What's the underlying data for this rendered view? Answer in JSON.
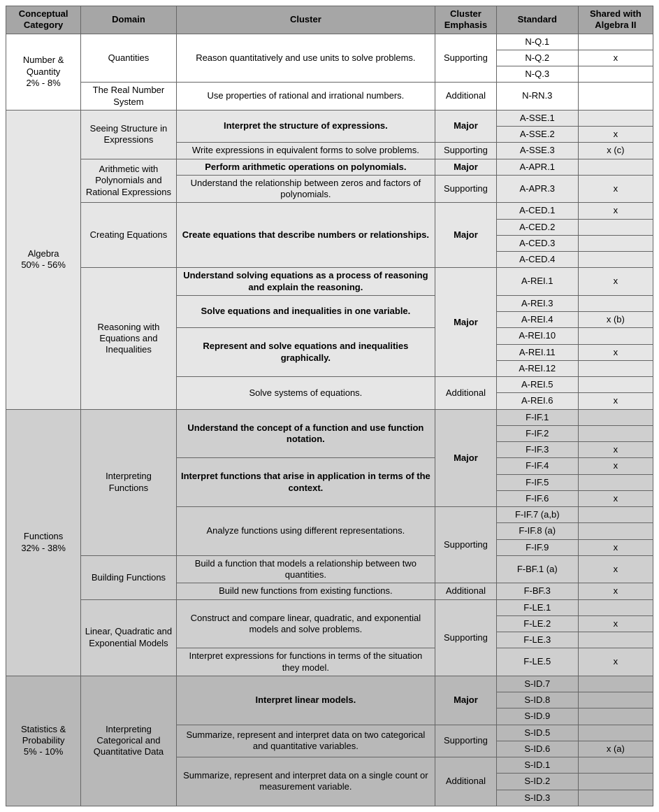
{
  "headers": {
    "category": "Conceptual Category",
    "domain": "Domain",
    "cluster": "Cluster",
    "emphasis": "Cluster Emphasis",
    "standard": "Standard",
    "shared": "Shared with Algebra II"
  },
  "styling": {
    "header_bg": "#a6a6a6",
    "section_bgs": [
      "#ffffff",
      "#e6e6e6",
      "#cfcfcf",
      "#b8b8b8"
    ],
    "border_color": "#666666",
    "font_family": "Arial",
    "font_size_pt": 10,
    "major_emphasis_bold": true
  },
  "sections": [
    {
      "category": "Number & Quantity\n2% - 8%",
      "bg": "#ffffff",
      "domains": [
        {
          "name": "Quantities",
          "clusters": [
            {
              "text": "Reason quantitatively and use units to solve problems.",
              "bold": false,
              "emphasis": "Supporting",
              "emphasis_bold": false,
              "standards": [
                {
                  "std": "N-Q.1",
                  "shared": ""
                },
                {
                  "std": "N-Q.2",
                  "shared": "x"
                },
                {
                  "std": "N-Q.3",
                  "shared": ""
                }
              ]
            }
          ]
        },
        {
          "name": "The Real Number System",
          "clusters": [
            {
              "text": "Use properties of rational and irrational numbers.",
              "bold": false,
              "emphasis": "Additional",
              "emphasis_bold": false,
              "standards": [
                {
                  "std": "N-RN.3",
                  "shared": ""
                }
              ]
            }
          ]
        }
      ]
    },
    {
      "category": "Algebra\n50% - 56%",
      "bg": "#e6e6e6",
      "domains": [
        {
          "name": "Seeing Structure in Expressions",
          "clusters": [
            {
              "text": "Interpret the structure of expressions.",
              "bold": true,
              "emphasis": "Major",
              "emphasis_bold": true,
              "standards": [
                {
                  "std": "A-SSE.1",
                  "shared": ""
                },
                {
                  "std": "A-SSE.2",
                  "shared": "x"
                }
              ]
            },
            {
              "text": "Write expressions in equivalent forms to solve problems.",
              "bold": false,
              "emphasis": "Supporting",
              "emphasis_bold": false,
              "standards": [
                {
                  "std": "A-SSE.3",
                  "shared": "x (c)"
                }
              ]
            }
          ]
        },
        {
          "name": "Arithmetic with Polynomials and Rational Expressions",
          "clusters": [
            {
              "text": "Perform arithmetic operations on polynomials.",
              "bold": true,
              "emphasis": "Major",
              "emphasis_bold": true,
              "standards": [
                {
                  "std": "A-APR.1",
                  "shared": ""
                }
              ]
            },
            {
              "text": "Understand the relationship between zeros and factors of polynomials.",
              "bold": false,
              "emphasis": "Supporting",
              "emphasis_bold": false,
              "standards": [
                {
                  "std": "A-APR.3",
                  "shared": "x"
                }
              ]
            }
          ]
        },
        {
          "name": "Creating Equations",
          "clusters": [
            {
              "text": "Create equations that describe numbers or relationships.",
              "bold": true,
              "emphasis": "Major",
              "emphasis_bold": true,
              "standards": [
                {
                  "std": "A-CED.1",
                  "shared": "x"
                },
                {
                  "std": "A-CED.2",
                  "shared": ""
                },
                {
                  "std": "A-CED.3",
                  "shared": ""
                },
                {
                  "std": "A-CED.4",
                  "shared": ""
                }
              ]
            }
          ]
        },
        {
          "name": "Reasoning with Equations and Inequalities",
          "merged_emphasis": {
            "text": "Major",
            "bold": true,
            "span_clusters": 3
          },
          "clusters": [
            {
              "text": "Understand solving equations as a process of reasoning and explain the reasoning.",
              "bold": true,
              "standards": [
                {
                  "std": "A-REI.1",
                  "shared": "x"
                }
              ]
            },
            {
              "text": "Solve equations and inequalities in one variable.",
              "bold": true,
              "standards": [
                {
                  "std": "A-REI.3",
                  "shared": ""
                },
                {
                  "std": "A-REI.4",
                  "shared": "x (b)"
                }
              ]
            },
            {
              "text": "Represent and solve equations and inequalities graphically.",
              "bold": true,
              "standards": [
                {
                  "std": "A-REI.10",
                  "shared": ""
                },
                {
                  "std": "A-REI.11",
                  "shared": "x"
                },
                {
                  "std": "A-REI.12",
                  "shared": ""
                }
              ]
            },
            {
              "text": "Solve systems of equations.",
              "bold": false,
              "emphasis": "Additional",
              "emphasis_bold": false,
              "standards": [
                {
                  "std": "A-REI.5",
                  "shared": ""
                },
                {
                  "std": "A-REI.6",
                  "shared": "x"
                }
              ]
            }
          ]
        }
      ]
    },
    {
      "category": "Functions\n32% - 38%",
      "bg": "#cfcfcf",
      "domains": [
        {
          "name": "Interpreting Functions",
          "merged_emphasis": {
            "text": "Major",
            "bold": true,
            "span_clusters": 2
          },
          "clusters": [
            {
              "text": "Understand the concept of a function and use function notation.",
              "bold": true,
              "standards": [
                {
                  "std": "F-IF.1",
                  "shared": ""
                },
                {
                  "std": "F-IF.2",
                  "shared": ""
                },
                {
                  "std": "F-IF.3",
                  "shared": "x"
                }
              ]
            },
            {
              "text": "Interpret functions that arise in application in terms of the context.",
              "bold": true,
              "standards": [
                {
                  "std": "F-IF.4",
                  "shared": "x"
                },
                {
                  "std": "F-IF.5",
                  "shared": ""
                },
                {
                  "std": "F-IF.6",
                  "shared": "x"
                }
              ]
            },
            {
              "text": "Analyze functions using different representations.",
              "bold": false,
              "emphasis": "Supporting",
              "emphasis_bold": false,
              "standards": [
                {
                  "std": "F-IF.7 (a,b)",
                  "shared": ""
                },
                {
                  "std": "F-IF.8 (a)",
                  "shared": ""
                },
                {
                  "std": "F-IF.9",
                  "shared": "x"
                }
              ]
            }
          ],
          "trailing_emphasis_merge": {
            "cluster_index": 2,
            "continues_into_next_domain": true,
            "total_rows": 4
          }
        },
        {
          "name": "Building Functions",
          "clusters": [
            {
              "text": "Build a function that models a relationship between two quantities.",
              "bold": false,
              "no_emphasis_cell": true,
              "standards": [
                {
                  "std": "F-BF.1 (a)",
                  "shared": "x"
                }
              ]
            },
            {
              "text": "Build new functions from existing functions.",
              "bold": false,
              "emphasis": "Additional",
              "emphasis_bold": false,
              "standards": [
                {
                  "std": "F-BF.3",
                  "shared": "x"
                }
              ]
            }
          ]
        },
        {
          "name": "Linear, Quadratic and Exponential Models",
          "merged_emphasis": {
            "text": "Supporting",
            "bold": false,
            "span_clusters": 2
          },
          "clusters": [
            {
              "text": "Construct and compare linear, quadratic, and exponential models and solve problems.",
              "bold": false,
              "standards": [
                {
                  "std": "F-LE.1",
                  "shared": ""
                },
                {
                  "std": "F-LE.2",
                  "shared": "x"
                },
                {
                  "std": "F-LE.3",
                  "shared": ""
                }
              ]
            },
            {
              "text": "Interpret expressions for functions in terms of the situation they model.",
              "bold": false,
              "standards": [
                {
                  "std": "F-LE.5",
                  "shared": "x"
                }
              ]
            }
          ]
        }
      ]
    },
    {
      "category": "Statistics & Probability\n5% - 10%",
      "bg": "#b8b8b8",
      "domains": [
        {
          "name": "Interpreting Categorical and Quantitative Data",
          "clusters": [
            {
              "text": "Interpret linear models.",
              "bold": true,
              "emphasis": "Major",
              "emphasis_bold": true,
              "standards": [
                {
                  "std": "S-ID.7",
                  "shared": ""
                },
                {
                  "std": "S-ID.8",
                  "shared": ""
                },
                {
                  "std": "S-ID.9",
                  "shared": ""
                }
              ]
            },
            {
              "text": "Summarize, represent and interpret data on two categorical and quantitative variables.",
              "bold": false,
              "emphasis": "Supporting",
              "emphasis_bold": false,
              "standards": [
                {
                  "std": "S-ID.5",
                  "shared": ""
                },
                {
                  "std": "S-ID.6",
                  "shared": "x (a)"
                }
              ]
            },
            {
              "text": "Summarize, represent and interpret data on a single count or measurement variable.",
              "bold": false,
              "emphasis": "Additional",
              "emphasis_bold": false,
              "standards": [
                {
                  "std": "S-ID.1",
                  "shared": ""
                },
                {
                  "std": "S-ID.2",
                  "shared": ""
                },
                {
                  "std": "S-ID.3",
                  "shared": ""
                }
              ]
            }
          ]
        }
      ]
    }
  ]
}
